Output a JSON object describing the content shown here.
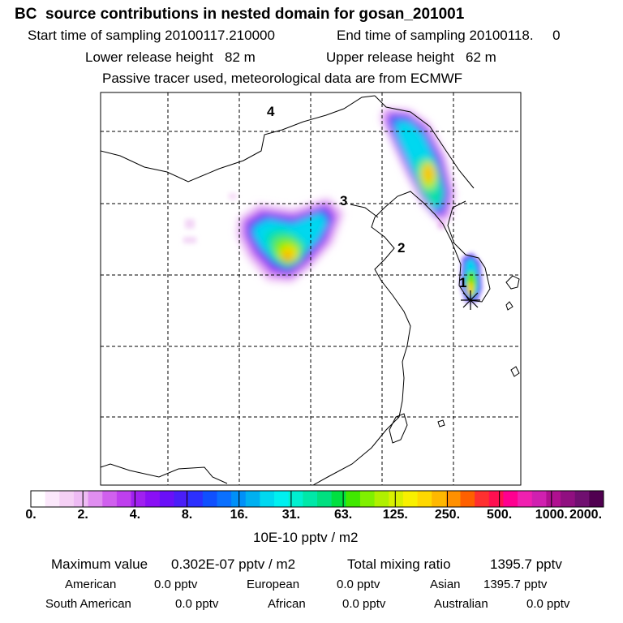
{
  "header": {
    "title": "BC  source contributions in nested domain for gosan_201001",
    "start_time": "Start time of sampling 20100117.210000",
    "end_time": "End time of sampling 20100118.     0",
    "lower_release": "Lower release height   82 m",
    "upper_release": "Upper release height   62 m",
    "tracer_note": "Passive tracer used, meteorological data are from ECMWF"
  },
  "map": {
    "source_labels": [
      "4",
      "3",
      "2",
      "1"
    ],
    "receptor": "gosan"
  },
  "colorbar": {
    "tick_labels": [
      "0.",
      "2.",
      "4.",
      "8.",
      "16.",
      "31.",
      "63.",
      "125.",
      "250.",
      "500.",
      "1000.",
      "2000."
    ],
    "colors": [
      "#ffffff",
      "#fbe8fb",
      "#f5d0f5",
      "#eebbf4",
      "#e08ef0",
      "#d060ee",
      "#bf3fee",
      "#a020f0",
      "#8a10f5",
      "#6a10f8",
      "#4a1ef8",
      "#2c30ff",
      "#1050ff",
      "#0a70ff",
      "#0090f8",
      "#00b0f0",
      "#00d8f0",
      "#00f0f0",
      "#00f0d0",
      "#00e8a8",
      "#00e080",
      "#00e040",
      "#40e800",
      "#80f000",
      "#b0f000",
      "#d8f000",
      "#f8f000",
      "#ffd800",
      "#ffb800",
      "#ff9000",
      "#ff6000",
      "#ff3030",
      "#ff1050",
      "#ff0090",
      "#f020b0",
      "#d020b0",
      "#b01090",
      "#901080",
      "#701070",
      "#500050"
    ],
    "units": "10E-10 pptv / m2"
  },
  "summary": {
    "max_label": "Maximum value",
    "max_value": "0.302E-07 pptv / m2",
    "total_label": "Total mixing ratio",
    "total_value": "1395.7 pptv",
    "regions": [
      {
        "name": "American",
        "value": "0.0 pptv"
      },
      {
        "name": "European",
        "value": "0.0 pptv"
      },
      {
        "name": "Asian",
        "value": "1395.7 pptv"
      },
      {
        "name": "South American",
        "value": "0.0 pptv"
      },
      {
        "name": "African",
        "value": "0.0 pptv"
      },
      {
        "name": "Australian",
        "value": "0.0 pptv"
      }
    ]
  }
}
